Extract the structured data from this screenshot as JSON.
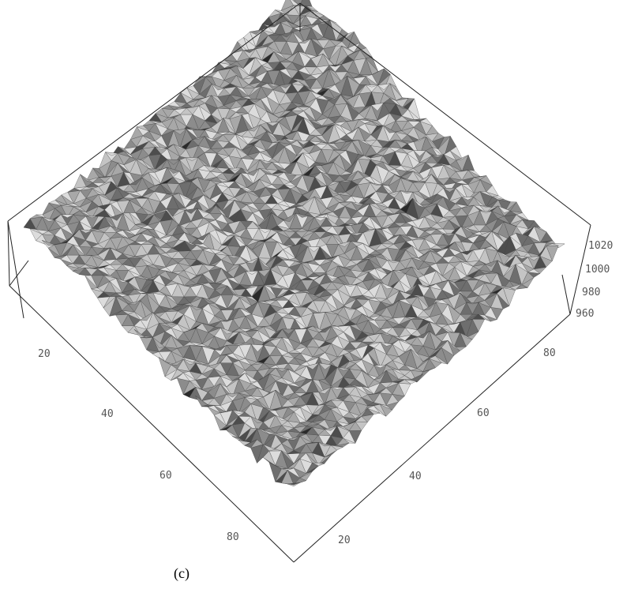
{
  "chart_data": {
    "type": "surface3d",
    "title": "",
    "xlabel": "",
    "ylabel": "",
    "zlabel": "",
    "x_ticks": [
      "20",
      "40",
      "60",
      "80"
    ],
    "y_ticks": [
      "20",
      "40",
      "60",
      "80"
    ],
    "z_ticks": [
      "960",
      "980",
      "1000",
      "1020"
    ],
    "x_range": [
      1,
      90
    ],
    "y_range": [
      1,
      90
    ],
    "z_range": [
      950,
      1040
    ],
    "grid": false,
    "colors": {
      "surface_base": "#8a8a8a",
      "box": "#222222",
      "ticks": "#555555"
    }
  },
  "caption": "(c)"
}
